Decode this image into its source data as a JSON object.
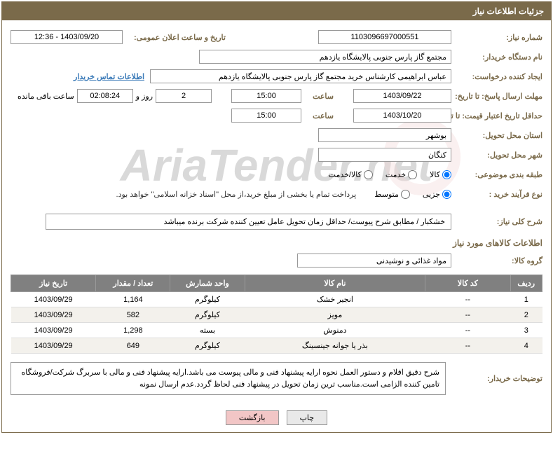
{
  "header": {
    "title": "جزئیات اطلاعات نیاز"
  },
  "labels": {
    "need_no": "شماره نیاز:",
    "announce_dt": "تاریخ و ساعت اعلان عمومی:",
    "buyer_org": "نام دستگاه خریدار:",
    "requester": "ایجاد کننده درخواست:",
    "contact_link": "اطلاعات تماس خریدار",
    "resp_deadline": "مهلت ارسال پاسخ: تا تاریخ:",
    "price_valid": "حداقل تاریخ اعتبار قیمت: تا تاریخ:",
    "time": "ساعت",
    "days_and": "روز و",
    "time_left": "ساعت باقی مانده",
    "province": "استان محل تحویل:",
    "city": "شهر محل تحویل:",
    "category": "طبقه بندی موضوعی:",
    "process": "نوع فرآیند خرید :",
    "general_desc": "شرح کلی نیاز:",
    "goods_info": "اطلاعات کالاهای مورد نیاز",
    "goods_group": "گروه کالا:",
    "buyer_notes": "توضیحات خریدار:"
  },
  "values": {
    "need_no": "1103096697000551",
    "announce_dt": "1403/09/20 - 12:36",
    "buyer_org": "مجتمع گاز پارس جنوبی  پالایشگاه یازدهم",
    "requester": "عباس ابراهیمی کارشناس خرید مجتمع گاز پارس جنوبی  پالایشگاه یازدهم",
    "resp_date": "1403/09/22",
    "resp_time": "15:00",
    "days_left": "2",
    "countdown": "02:08:24",
    "valid_date": "1403/10/20",
    "valid_time": "15:00",
    "province": "بوشهر",
    "city": "کنگان",
    "pay_note": "پرداخت تمام یا بخشی از مبلغ خرید،از محل \"اسناد خزانه اسلامی\" خواهد بود.",
    "general_desc": "خشکبار / مطابق شرح پیوست/ حداقل زمان تحویل عامل تعیین کننده شرکت برنده میباشد",
    "goods_group": "مواد غذائی و نوشیدنی",
    "buyer_notes": "شرح دقیق اقلام و دستور العمل نحوه ارایه پیشنهاد فنی و مالی پیوست می باشد.ارایه پیشنهاد فنی و مالی با سربرگ شرکت/فروشگاه تامین کننده الزامی است.مناسب ترین زمان تحویل در پیشنهاد فنی لحاظ گردد.عدم ارسال نمونه"
  },
  "radios": {
    "category": [
      {
        "label": "کالا",
        "checked": true
      },
      {
        "label": "خدمت",
        "checked": false
      },
      {
        "label": "کالا/خدمت",
        "checked": false
      }
    ],
    "process": [
      {
        "label": "جزیی",
        "checked": true
      },
      {
        "label": "متوسط",
        "checked": false
      }
    ]
  },
  "table": {
    "columns": [
      "ردیف",
      "کد کالا",
      "نام کالا",
      "واحد شمارش",
      "تعداد / مقدار",
      "تاریخ نیاز"
    ],
    "col_widths": [
      "6%",
      "16%",
      "34%",
      "14%",
      "14%",
      "16%"
    ],
    "rows": [
      [
        "1",
        "--",
        "انجیر خشک",
        "کیلوگرم",
        "1,164",
        "1403/09/29"
      ],
      [
        "2",
        "--",
        "مویز",
        "کیلوگرم",
        "582",
        "1403/09/29"
      ],
      [
        "3",
        "--",
        "دمنوش",
        "بسته",
        "1,298",
        "1403/09/29"
      ],
      [
        "4",
        "--",
        "بذر یا جوانه جینسینگ",
        "کیلوگرم",
        "649",
        "1403/09/29"
      ]
    ]
  },
  "buttons": {
    "print": "چاپ",
    "back": "بازگشت"
  },
  "watermark": "AriaTender.net"
}
